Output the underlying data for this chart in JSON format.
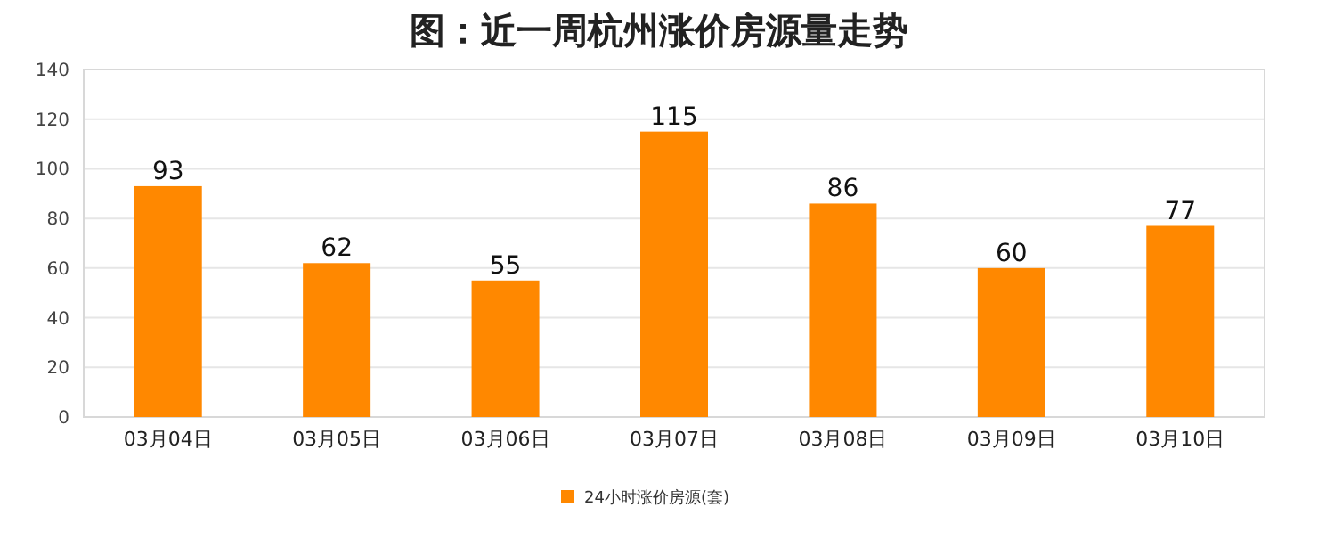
{
  "chart_data": {
    "type": "bar",
    "title": "图：近一周杭州涨价房源量走势",
    "categories": [
      "03月04日",
      "03月05日",
      "03月06日",
      "03月07日",
      "03月08日",
      "03月09日",
      "03月10日"
    ],
    "series": [
      {
        "name": "24小时涨价房源(套)",
        "color": "#ff8800",
        "values": [
          93,
          62,
          55,
          115,
          86,
          60,
          77
        ]
      }
    ],
    "ylim": [
      0,
      140
    ],
    "yticks": [
      0,
      20,
      40,
      60,
      80,
      100,
      120,
      140
    ],
    "grid": "y",
    "legend": "bottom",
    "data_labels": true
  }
}
